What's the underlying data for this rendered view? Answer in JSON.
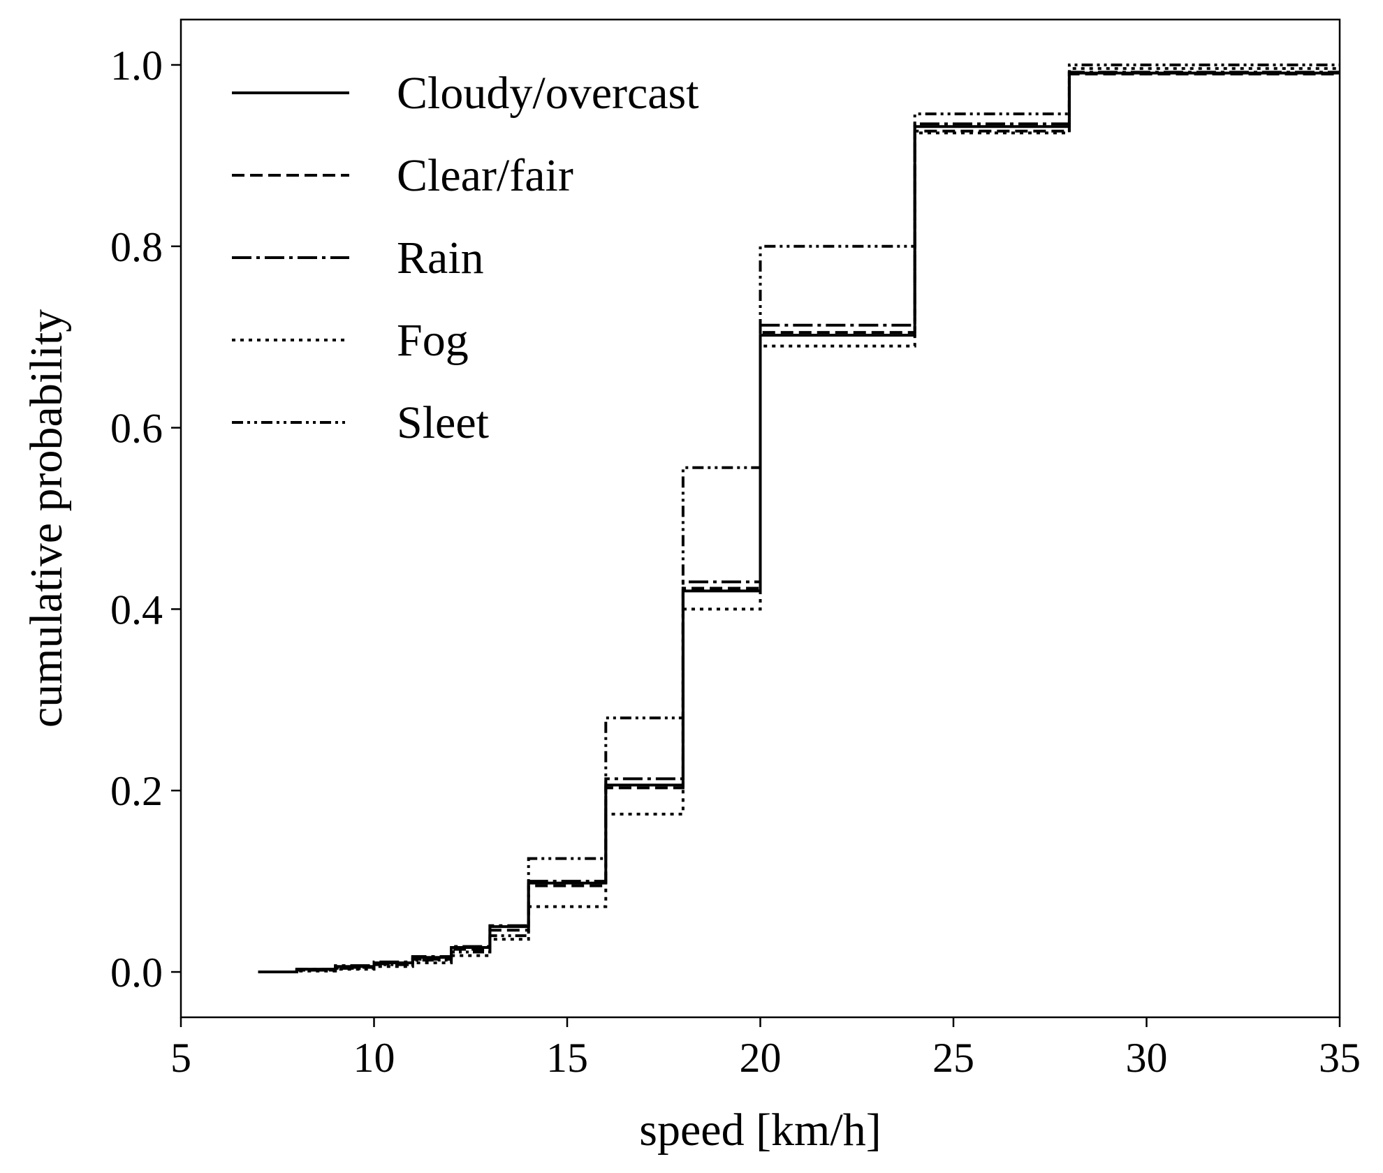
{
  "chart_data": {
    "type": "line",
    "step": true,
    "xlabel": "speed [km/h]",
    "ylabel": "cumulative probability",
    "xlim": [
      5,
      35
    ],
    "ylim": [
      -0.05,
      1.05
    ],
    "xticks": [
      5,
      10,
      15,
      20,
      25,
      30,
      35
    ],
    "yticks": [
      0.0,
      0.2,
      0.4,
      0.6,
      0.8,
      1.0
    ],
    "xtick_labels": [
      "5",
      "10",
      "15",
      "20",
      "25",
      "30",
      "35"
    ],
    "ytick_labels": [
      "0.0",
      "0.2",
      "0.4",
      "0.6",
      "0.8",
      "1.0"
    ],
    "grid": false,
    "legend_position": "upper-left",
    "x": [
      7,
      8,
      9,
      10,
      11,
      12,
      13,
      14,
      16,
      18,
      20,
      24,
      28,
      35
    ],
    "series": [
      {
        "name": "Cloudy/overcast",
        "style": "solid",
        "values": [
          0.0,
          0.003,
          0.006,
          0.01,
          0.016,
          0.027,
          0.05,
          0.098,
          0.206,
          0.42,
          0.702,
          0.932,
          0.991,
          0.991
        ]
      },
      {
        "name": "Clear/fair",
        "style": "dashed",
        "values": [
          0.0,
          0.002,
          0.005,
          0.009,
          0.014,
          0.025,
          0.046,
          0.095,
          0.203,
          0.423,
          0.705,
          0.927,
          0.99,
          0.99
        ]
      },
      {
        "name": "Rain",
        "style": "dashdot",
        "values": [
          0.0,
          0.003,
          0.007,
          0.011,
          0.017,
          0.028,
          0.051,
          0.1,
          0.213,
          0.43,
          0.713,
          0.935,
          0.992,
          0.992
        ]
      },
      {
        "name": "Fog",
        "style": "dotted",
        "values": [
          0.0,
          0.001,
          0.003,
          0.006,
          0.01,
          0.018,
          0.036,
          0.072,
          0.174,
          0.4,
          0.69,
          0.925,
          0.996,
          0.996
        ]
      },
      {
        "name": "Sleet",
        "style": "dashdotdot",
        "values": [
          0.0,
          0.002,
          0.004,
          0.008,
          0.013,
          0.022,
          0.04,
          0.125,
          0.28,
          0.556,
          0.8,
          0.946,
          1.0,
          1.0
        ]
      }
    ]
  }
}
